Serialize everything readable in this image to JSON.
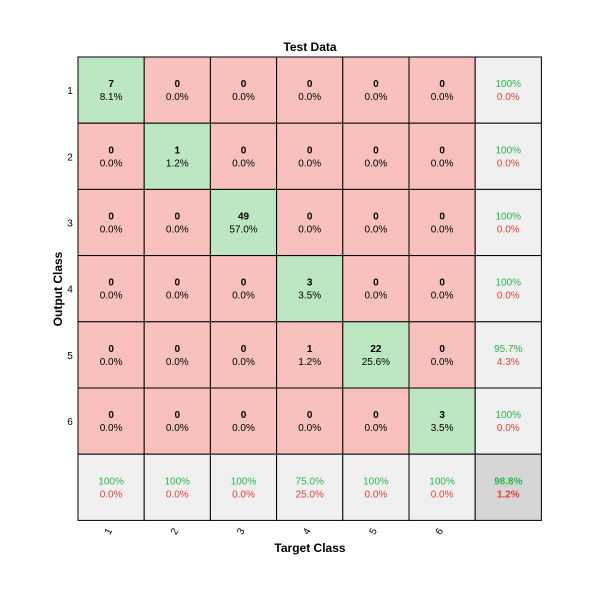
{
  "chart_data": {
    "type": "heatmap",
    "title": "Test Data",
    "xlabel": "Target Class",
    "ylabel": "Output Class",
    "x_ticks": [
      "1",
      "2",
      "3",
      "4",
      "5",
      "6"
    ],
    "y_ticks": [
      "1",
      "2",
      "3",
      "4",
      "5",
      "6"
    ],
    "matrix": [
      [
        7,
        0,
        0,
        0,
        0,
        0
      ],
      [
        0,
        1,
        0,
        0,
        0,
        0
      ],
      [
        0,
        0,
        49,
        0,
        0,
        0
      ],
      [
        0,
        0,
        0,
        3,
        0,
        0
      ],
      [
        0,
        0,
        0,
        1,
        22,
        0
      ],
      [
        0,
        0,
        0,
        0,
        0,
        3
      ]
    ],
    "percent_labels": [
      [
        "8.1%",
        "0.0%",
        "0.0%",
        "0.0%",
        "0.0%",
        "0.0%"
      ],
      [
        "0.0%",
        "1.2%",
        "0.0%",
        "0.0%",
        "0.0%",
        "0.0%"
      ],
      [
        "0.0%",
        "0.0%",
        "57.0%",
        "0.0%",
        "0.0%",
        "0.0%"
      ],
      [
        "0.0%",
        "0.0%",
        "0.0%",
        "3.5%",
        "0.0%",
        "0.0%"
      ],
      [
        "0.0%",
        "0.0%",
        "0.0%",
        "1.2%",
        "25.6%",
        "0.0%"
      ],
      [
        "0.0%",
        "0.0%",
        "0.0%",
        "0.0%",
        "0.0%",
        "3.5%"
      ]
    ],
    "row_summary": [
      {
        "correct": "100%",
        "incorrect": "0.0%"
      },
      {
        "correct": "100%",
        "incorrect": "0.0%"
      },
      {
        "correct": "100%",
        "incorrect": "0.0%"
      },
      {
        "correct": "100%",
        "incorrect": "0.0%"
      },
      {
        "correct": "95.7%",
        "incorrect": "4.3%"
      },
      {
        "correct": "100%",
        "incorrect": "0.0%"
      }
    ],
    "col_summary": [
      {
        "correct": "100%",
        "incorrect": "0.0%"
      },
      {
        "correct": "100%",
        "incorrect": "0.0%"
      },
      {
        "correct": "100%",
        "incorrect": "0.0%"
      },
      {
        "correct": "75.0%",
        "incorrect": "25.0%"
      },
      {
        "correct": "100%",
        "incorrect": "0.0%"
      },
      {
        "correct": "100%",
        "incorrect": "0.0%"
      }
    ],
    "overall": {
      "correct": "98.8%",
      "incorrect": "1.2%"
    },
    "colors": {
      "diagonal": "#bde6c3",
      "off_diagonal": "#f8c1bd",
      "summary": "#f0f0f0",
      "overall": "#d6d6d6",
      "correct_text": "#2bb34a",
      "incorrect_text": "#e0403a",
      "text": "#000000",
      "border": "#000000"
    }
  }
}
